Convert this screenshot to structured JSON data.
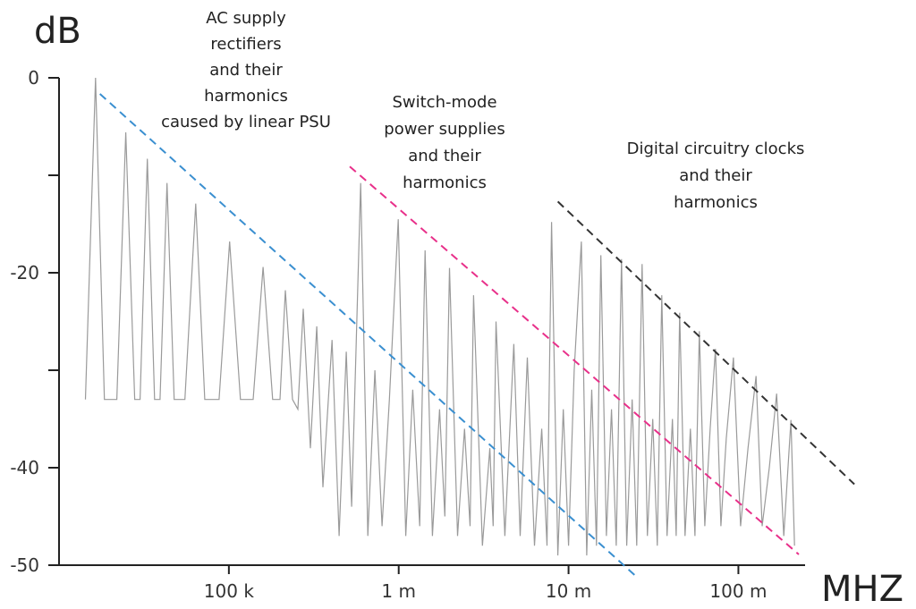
{
  "chart_data": {
    "type": "line",
    "y_label": "dB",
    "x_label": "MHZ",
    "log_x": true,
    "xlim": [
      10000,
      247000000
    ],
    "ylim": [
      -50,
      0
    ],
    "xticks": [
      {
        "value": 100000,
        "label": "100 k"
      },
      {
        "value": 1000000,
        "label": "1 m"
      },
      {
        "value": 10000000,
        "label": "10 m"
      },
      {
        "value": 100000000,
        "label": "100 m"
      }
    ],
    "yticks": [
      0,
      -20,
      -40,
      -50
    ],
    "yminorticks": [
      -10,
      -30
    ],
    "annotations": [
      {
        "lines": [
          "AC supply",
          "rectifiers",
          "and their",
          "harmonics",
          "caused by linear PSU"
        ]
      },
      {
        "lines": [
          "Switch-mode",
          "power supplies",
          "and their",
          "harmonics"
        ]
      },
      {
        "lines": [
          "Digital circuitry clocks",
          "and their",
          "harmonics"
        ]
      }
    ],
    "series": [
      {
        "color": "#9a9a9a",
        "dash": false,
        "x": [
          14300,
          16400,
          18500,
          21900,
          24700,
          27900,
          30000,
          33100,
          36500,
          39300,
          43200,
          47600,
          55100,
          63800,
          72100,
          87500,
          101000,
          117000,
          139000,
          159000,
          181000,
          200000,
          215000,
          237000,
          255000,
          274000,
          302000,
          329000,
          358000,
          405000,
          446000,
          491000,
          528000,
          597000,
          658000,
          724000,
          798000,
          881000,
          994000,
          1100000,
          1210000,
          1330000,
          1430000,
          1580000,
          1740000,
          1870000,
          1990000,
          2220000,
          2440000,
          2630000,
          2760000,
          3110000,
          3440000,
          3600000,
          3740000,
          4220000,
          4760000,
          5190000,
          5720000,
          6300000,
          6950000,
          7470000,
          7940000,
          8650000,
          9310000,
          10000000,
          10800000,
          11900000,
          12800000,
          13700000,
          14600000,
          15500000,
          16700000,
          17900000,
          19100000,
          20500000,
          22000000,
          23700000,
          25200000,
          27100000,
          29100000,
          31300000,
          33300000,
          35400000,
          38000000,
          40900000,
          43000000,
          45100000,
          48500000,
          52200000,
          55500000,
          58900000,
          63400000,
          68200000,
          73300000,
          78900000,
          84900000,
          93500000,
          103000000,
          114000000,
          127000000,
          138000000,
          152000000,
          168000000,
          185000000,
          204000000,
          214000000
        ],
        "values": [
          -33,
          0,
          -33,
          -33,
          -5.6,
          -33,
          -33,
          -8.3,
          -33,
          -33,
          -10.8,
          -33,
          -33,
          -12.9,
          -33,
          -33,
          -16.8,
          -33,
          -33,
          -19.4,
          -33,
          -33,
          -21.8,
          -33,
          -34,
          -23.7,
          -38,
          -25.5,
          -42,
          -26.9,
          -47,
          -28.1,
          -44,
          -10.8,
          -47,
          -30,
          -46,
          -33,
          -14.5,
          -47,
          -32,
          -46,
          -17.7,
          -47,
          -34,
          -45,
          -19.5,
          -47,
          -36,
          -46,
          -22.3,
          -48,
          -38,
          -46,
          -25,
          -47,
          -27.3,
          -47,
          -28.7,
          -48,
          -36,
          -48,
          -14.8,
          -49,
          -34,
          -48,
          -30,
          -16.8,
          -49,
          -32,
          -48,
          -18.2,
          -47,
          -34,
          -48,
          -18.6,
          -48,
          -33,
          -48,
          -19.1,
          -47,
          -35,
          -48,
          -22.3,
          -47,
          -35,
          -47,
          -24.1,
          -47,
          -36,
          -47,
          -26,
          -46,
          -36,
          -27.8,
          -46,
          -37,
          -28.7,
          -46,
          -38,
          -30.6,
          -46,
          -40,
          -32.4,
          -47,
          -35.1,
          -48
        ]
      },
      {
        "color": "#3a8fd0",
        "dash": true,
        "x": [
          17400,
          25200000
        ],
        "values": [
          -1.65,
          -51.2
        ]
      },
      {
        "color": "#e8308a",
        "dash": true,
        "x": [
          515000,
          227000000
        ],
        "values": [
          -9.1,
          -48.9
        ]
      },
      {
        "color": "#333333",
        "dash": true,
        "x": [
          8650000,
          482000000
        ],
        "values": [
          -12.7,
          -41.7
        ]
      }
    ]
  }
}
